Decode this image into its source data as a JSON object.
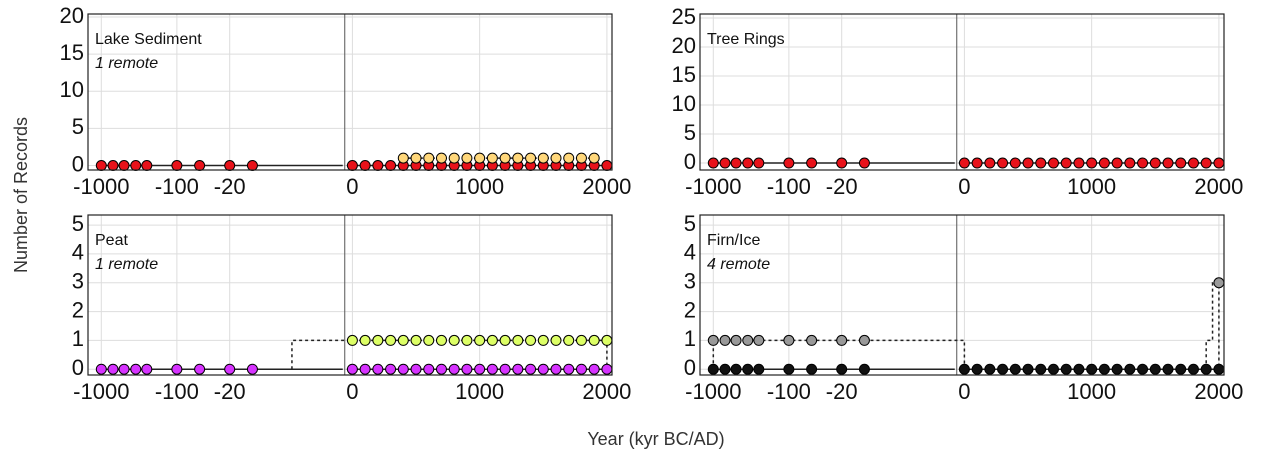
{
  "chart_data": [
    {
      "type": "scatter",
      "title": "Lake Sediment",
      "note": "1 remote",
      "xsegments": [
        {
          "xlim": [
            -1500,
            -0.6
          ],
          "log": true
        },
        {
          "xlim": [
            -60,
            2040
          ]
        }
      ],
      "xticks": [
        -1000,
        -100,
        -20,
        0,
        1000,
        2000
      ],
      "ylim": [
        -0.6,
        20.4
      ],
      "yticks": [
        0,
        5,
        10,
        15,
        20
      ],
      "grid": true,
      "series": [
        {
          "color": "#e8121a",
          "x": [
            -1000,
            -700,
            -500,
            -350,
            -250,
            -100,
            -50,
            -20,
            -10,
            0,
            100,
            200,
            300,
            400,
            500,
            600,
            700,
            800,
            900,
            1000,
            1100,
            1200,
            1300,
            1400,
            1500,
            1600,
            1700,
            1800,
            1900,
            2000
          ],
          "values": [
            0,
            0,
            0,
            0,
            0,
            0,
            0,
            0,
            0,
            0,
            0,
            0,
            0,
            0,
            0,
            0,
            0,
            0,
            0,
            0,
            0,
            0,
            0,
            0,
            0,
            0,
            0,
            0,
            0,
            0
          ]
        },
        {
          "color": "#ffd77a",
          "x": [
            400,
            500,
            600,
            700,
            800,
            900,
            1000,
            1100,
            1200,
            1300,
            1400,
            1500,
            1600,
            1700,
            1800,
            1900
          ],
          "values": [
            1,
            1,
            1,
            1,
            1,
            1,
            1,
            1,
            1,
            1,
            1,
            1,
            1,
            1,
            1,
            1
          ]
        }
      ],
      "lines": [
        {
          "style": "dotted",
          "x": [
            400,
            400,
            1900,
            1900
          ],
          "values": [
            0,
            1,
            1,
            0
          ]
        }
      ]
    },
    {
      "type": "scatter",
      "title": "Tree Rings",
      "xsegments": [
        {
          "xlim": [
            -1500,
            -0.6
          ],
          "log": true
        },
        {
          "xlim": [
            -60,
            2040
          ]
        }
      ],
      "xticks": [
        -1000,
        -100,
        -20,
        0,
        1000,
        2000
      ],
      "ylim": [
        -1.2,
        25.7
      ],
      "yticks": [
        0,
        5,
        10,
        15,
        20,
        25
      ],
      "grid": true,
      "series": [
        {
          "color": "#e8121a",
          "x": [
            -1000,
            -700,
            -500,
            -350,
            -250,
            -100,
            -50,
            -20,
            -10,
            0,
            100,
            200,
            300,
            400,
            500,
            600,
            700,
            800,
            900,
            1000,
            1100,
            1200,
            1300,
            1400,
            1500,
            1600,
            1700,
            1800,
            1900,
            2000
          ],
          "values": [
            0,
            0,
            0,
            0,
            0,
            0,
            0,
            0,
            0,
            0,
            0,
            0,
            0,
            0,
            0,
            0,
            0,
            0,
            0,
            0,
            0,
            0,
            0,
            0,
            0,
            0,
            0,
            0,
            0,
            0
          ]
        }
      ],
      "lines": []
    },
    {
      "type": "scatter",
      "title": "Peat",
      "note": "1 remote",
      "xsegments": [
        {
          "xlim": [
            -1500,
            -0.6
          ],
          "log": true
        },
        {
          "xlim": [
            -60,
            2040
          ]
        }
      ],
      "xticks": [
        -1000,
        -100,
        -20,
        0,
        1000,
        2000
      ],
      "ylim": [
        -0.2,
        5.35
      ],
      "yticks": [
        0,
        1,
        2,
        3,
        4,
        5
      ],
      "grid": true,
      "series": [
        {
          "color": "#d633ff",
          "x": [
            -1000,
            -700,
            -500,
            -350,
            -250,
            -100,
            -50,
            -20,
            -10,
            0,
            100,
            200,
            300,
            400,
            500,
            600,
            700,
            800,
            900,
            1000,
            1100,
            1200,
            1300,
            1400,
            1500,
            1600,
            1700,
            1800,
            1900,
            2000
          ],
          "values": [
            0,
            0,
            0,
            0,
            0,
            0,
            0,
            0,
            0,
            0,
            0,
            0,
            0,
            0,
            0,
            0,
            0,
            0,
            0,
            0,
            0,
            0,
            0,
            0,
            0,
            0,
            0,
            0,
            0,
            0
          ]
        },
        {
          "color": "#ddff66",
          "x": [
            0,
            100,
            200,
            300,
            400,
            500,
            600,
            700,
            800,
            900,
            1000,
            1100,
            1200,
            1300,
            1400,
            1500,
            1600,
            1700,
            1800,
            1900,
            2000
          ],
          "values": [
            1,
            1,
            1,
            1,
            1,
            1,
            1,
            1,
            1,
            1,
            1,
            1,
            1,
            1,
            1,
            1,
            1,
            1,
            1,
            1,
            1
          ]
        }
      ],
      "lines": [
        {
          "style": "dotted",
          "x": [
            -3,
            -3,
            2000,
            2000
          ],
          "values": [
            0,
            1,
            1,
            0
          ]
        }
      ]
    },
    {
      "type": "scatter",
      "title": "Firn/Ice",
      "note": "4 remote",
      "xsegments": [
        {
          "xlim": [
            -1500,
            -0.6
          ],
          "log": true
        },
        {
          "xlim": [
            -60,
            2040
          ]
        }
      ],
      "xticks": [
        -1000,
        -100,
        -20,
        0,
        1000,
        2000
      ],
      "ylim": [
        -0.2,
        5.35
      ],
      "yticks": [
        0,
        1,
        2,
        3,
        4,
        5
      ],
      "grid": true,
      "series": [
        {
          "color": "#111111",
          "x": [
            -1000,
            -700,
            -500,
            -350,
            -250,
            -100,
            -50,
            -20,
            -10,
            0,
            100,
            200,
            300,
            400,
            500,
            600,
            700,
            800,
            900,
            1000,
            1100,
            1200,
            1300,
            1400,
            1500,
            1600,
            1700,
            1800,
            1900,
            2000
          ],
          "values": [
            0,
            0,
            0,
            0,
            0,
            0,
            0,
            0,
            0,
            0,
            0,
            0,
            0,
            0,
            0,
            0,
            0,
            0,
            0,
            0,
            0,
            0,
            0,
            0,
            0,
            0,
            0,
            0,
            0,
            0
          ]
        },
        {
          "color": "#999999",
          "x": [
            -1000,
            -700,
            -500,
            -350,
            -250,
            -100,
            -50,
            -20,
            -10,
            2000
          ],
          "values": [
            1,
            1,
            1,
            1,
            1,
            1,
            1,
            1,
            1,
            3
          ]
        }
      ],
      "lines": [
        {
          "style": "dotted",
          "x": [
            -1000,
            -1000,
            0,
            0
          ],
          "values": [
            0,
            1,
            1,
            0
          ]
        },
        {
          "style": "dotted",
          "x": [
            1900,
            1900,
            1950,
            1950,
            2000,
            2000
          ],
          "values": [
            0,
            1,
            1,
            3,
            3,
            0
          ]
        }
      ]
    }
  ],
  "ylabel": "Number of Records",
  "xlabel": "Year (kyr BC/AD)"
}
